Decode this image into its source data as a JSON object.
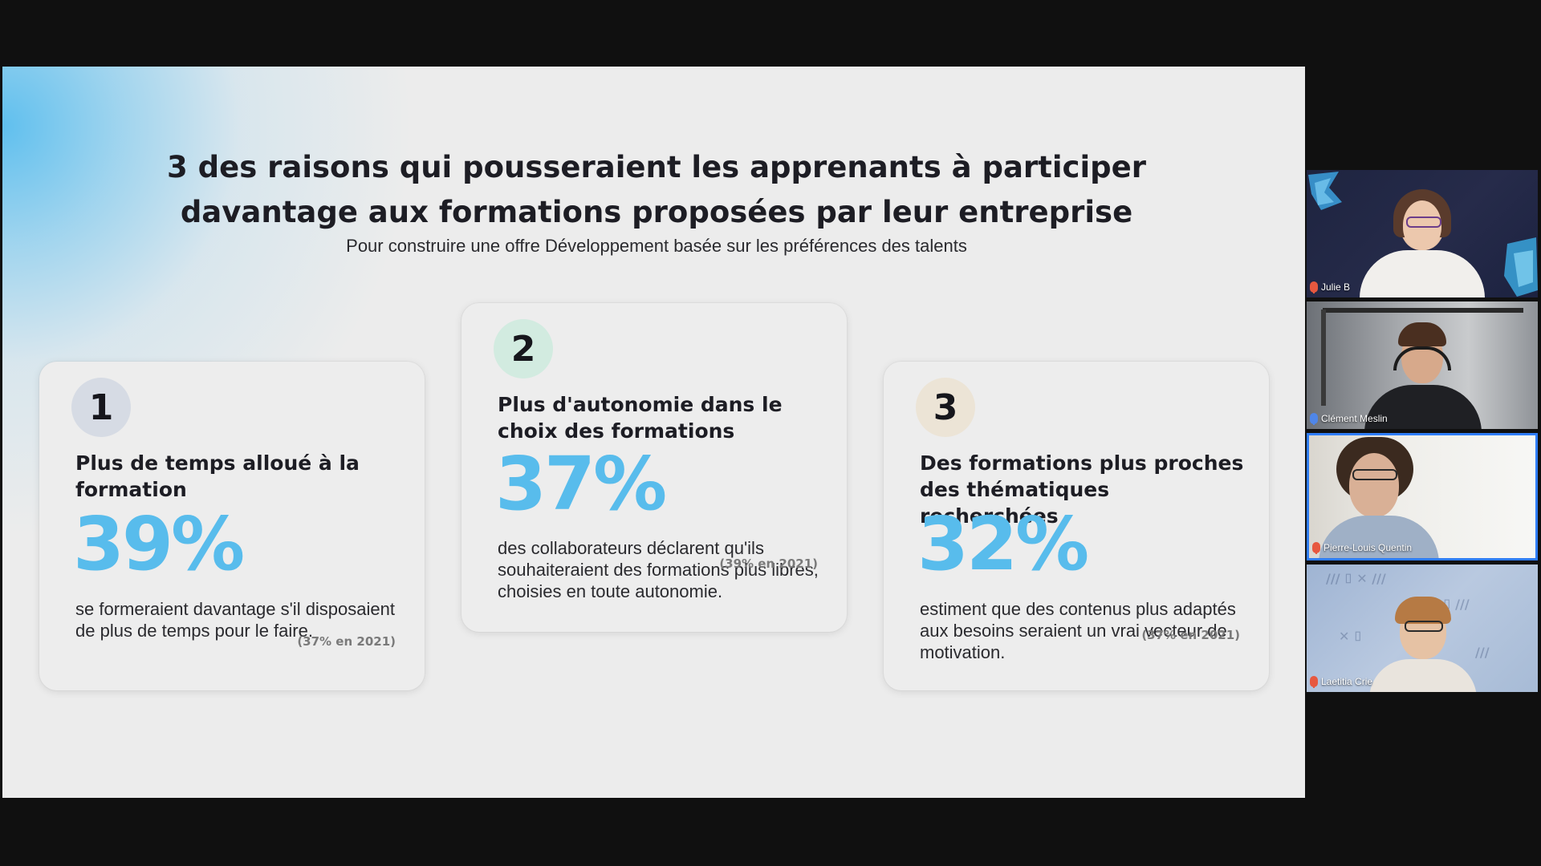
{
  "slide": {
    "title_line1": "3 des raisons qui pousseraient les apprenants à participer",
    "title_line2": "davantage aux formations proposées par leur entreprise",
    "subtitle": "Pour construire une offre Développement basée sur les préférences des talents",
    "cards": [
      {
        "number": "1",
        "heading": "Plus de temps alloué à la formation",
        "percent": "39%",
        "description": "se formeraient davantage s'il disposaient de plus de temps pour le faire.",
        "previous": "(37% en 2021)"
      },
      {
        "number": "2",
        "heading": "Plus d'autonomie dans le choix des formations",
        "percent": "37%",
        "description": "des collaborateurs déclarent qu'ils souhaiteraient des  formations plus libres, choisies en toute autonomie.",
        "previous": "(39% en 2021)"
      },
      {
        "number": "3",
        "heading": "Des formations plus proches des thématiques recherchées",
        "percent": "32%",
        "description": "estiment que des contenus plus adaptés aux besoins seraient un vrai vecteur de motivation.",
        "previous": "(37% en 2021)"
      }
    ]
  },
  "participants": [
    {
      "name": "Julie B",
      "muted_icon": "mic-muted-icon",
      "active": false
    },
    {
      "name": "Clément Meslin",
      "muted_icon": "mic-icon",
      "active": false
    },
    {
      "name": "Pierre-Louis Quentin",
      "muted_icon": "mic-muted-icon",
      "active": true
    },
    {
      "name": "Laetitia Crie",
      "muted_icon": "mic-muted-icon",
      "active": false
    }
  ],
  "colors": {
    "accent_percent": "#58bcec",
    "active_speaker_border": "#2f7df6",
    "background": "#101010"
  }
}
